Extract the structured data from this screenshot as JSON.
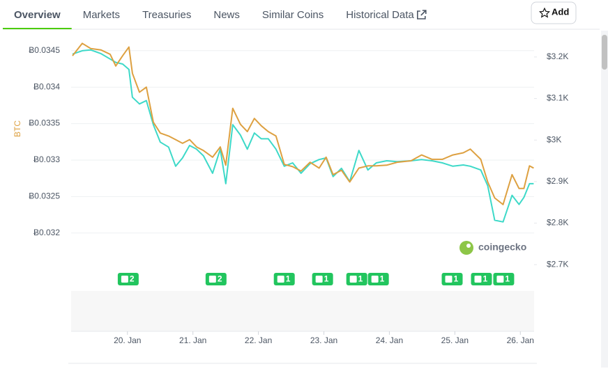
{
  "tabs": [
    "Overview",
    "Markets",
    "Treasuries",
    "News",
    "Similar Coins",
    "Historical Data"
  ],
  "active_tab": "Overview",
  "add_button": "Add",
  "watermark": "coingecko",
  "chart_data": {
    "type": "line",
    "y_label": "BTC",
    "x": [
      19.161,
      19.31,
      19.438,
      19.597,
      19.736,
      19.821,
      19.927,
      20.023,
      20.076,
      20.183,
      20.289,
      20.395,
      20.502,
      20.629,
      20.736,
      20.842,
      20.949,
      21.055,
      21.161,
      21.3,
      21.417,
      21.502,
      21.608,
      21.725,
      21.831,
      21.938,
      22.044,
      22.151,
      22.268,
      22.395,
      22.523,
      22.651,
      22.789,
      22.927,
      23.034,
      23.14,
      23.268,
      23.395,
      23.534,
      23.672,
      23.8,
      23.959,
      24.119,
      24.331,
      24.491,
      24.651,
      24.81,
      24.97,
      25.129,
      25.236,
      25.395,
      25.502,
      25.608,
      25.736,
      25.874,
      25.98,
      26.055,
      26.14,
      26.204
    ],
    "series": [
      {
        "color": "#3dd9c8",
        "axis": "y2",
        "values": [
          3207,
          3215,
          3217,
          3208,
          3195,
          3187,
          3183,
          3170,
          3103,
          3087,
          3095,
          3037,
          2995,
          2983,
          2937,
          2957,
          2987,
          2978,
          2962,
          2920,
          2978,
          2895,
          3037,
          3012,
          2978,
          3017,
          3003,
          3003,
          2978,
          2937,
          2945,
          2920,
          2943,
          2953,
          2957,
          2912,
          2932,
          2900,
          2975,
          2928,
          2945,
          2950,
          2948,
          2950,
          2953,
          2950,
          2945,
          2937,
          2940,
          2937,
          2928,
          2890,
          2807,
          2803,
          2867,
          2845,
          2862,
          2895,
          2895
        ]
      },
      {
        "color": "#dda040",
        "values": [
          0.03443,
          0.0346,
          0.03453,
          0.03451,
          0.03445,
          0.03429,
          0.03443,
          0.03455,
          0.03419,
          0.03393,
          0.034,
          0.03352,
          0.03337,
          0.03333,
          0.03328,
          0.03323,
          0.03328,
          0.03318,
          0.03313,
          0.03304,
          0.03318,
          0.03293,
          0.03371,
          0.03349,
          0.03339,
          0.03357,
          0.03347,
          0.03339,
          0.03333,
          0.03294,
          0.03291,
          0.03285,
          0.03297,
          0.03289,
          0.03304,
          0.0328,
          0.03286,
          0.0327,
          0.03289,
          0.03292,
          0.03292,
          0.03293,
          0.03297,
          0.03299,
          0.03307,
          0.03301,
          0.03301,
          0.03307,
          0.0331,
          0.03315,
          0.03301,
          0.0327,
          0.03248,
          0.03239,
          0.0328,
          0.03261,
          0.03261,
          0.03292,
          0.03289
        ]
      }
    ],
    "xlim": [
      19.14,
      26.21
    ],
    "xticks": [
      {
        "value": 20,
        "label": "20. Jan"
      },
      {
        "value": 21,
        "label": "21. Jan"
      },
      {
        "value": 22,
        "label": "22. Jan"
      },
      {
        "value": 23,
        "label": "23. Jan"
      },
      {
        "value": 24,
        "label": "24. Jan"
      },
      {
        "value": 25,
        "label": "25. Jan"
      },
      {
        "value": 26,
        "label": "26. Jan"
      }
    ],
    "ylim": [
      0.03152,
      0.03467
    ],
    "yticks": [
      {
        "value": 0.032,
        "label": "Ƀ0.032"
      },
      {
        "value": 0.0325,
        "label": "Ƀ0.0325"
      },
      {
        "value": 0.033,
        "label": "Ƀ0.033"
      },
      {
        "value": 0.0335,
        "label": "Ƀ0.0335"
      },
      {
        "value": 0.034,
        "label": "Ƀ0.034"
      },
      {
        "value": 0.0345,
        "label": "Ƀ0.0345"
      }
    ],
    "y2lim": [
      2692,
      3245
    ],
    "y2ticks": [
      {
        "value": 2700,
        "label": "$2.7K"
      },
      {
        "value": 2800,
        "label": "$2.8K"
      },
      {
        "value": 2900,
        "label": "$2.9K"
      },
      {
        "value": 3000,
        "label": "$3K"
      },
      {
        "value": 3100,
        "label": "$3.1K"
      },
      {
        "value": 3200,
        "label": "$3.2K"
      }
    ],
    "grid": true,
    "news": [
      {
        "x": 20.012,
        "count": 2
      },
      {
        "x": 21.353,
        "count": 2
      },
      {
        "x": 22.395,
        "count": 1
      },
      {
        "x": 22.98,
        "count": 1
      },
      {
        "x": 23.502,
        "count": 1
      },
      {
        "x": 23.832,
        "count": 1
      },
      {
        "x": 24.959,
        "count": 1
      },
      {
        "x": 25.406,
        "count": 1
      },
      {
        "x": 25.746,
        "count": 1
      }
    ]
  }
}
